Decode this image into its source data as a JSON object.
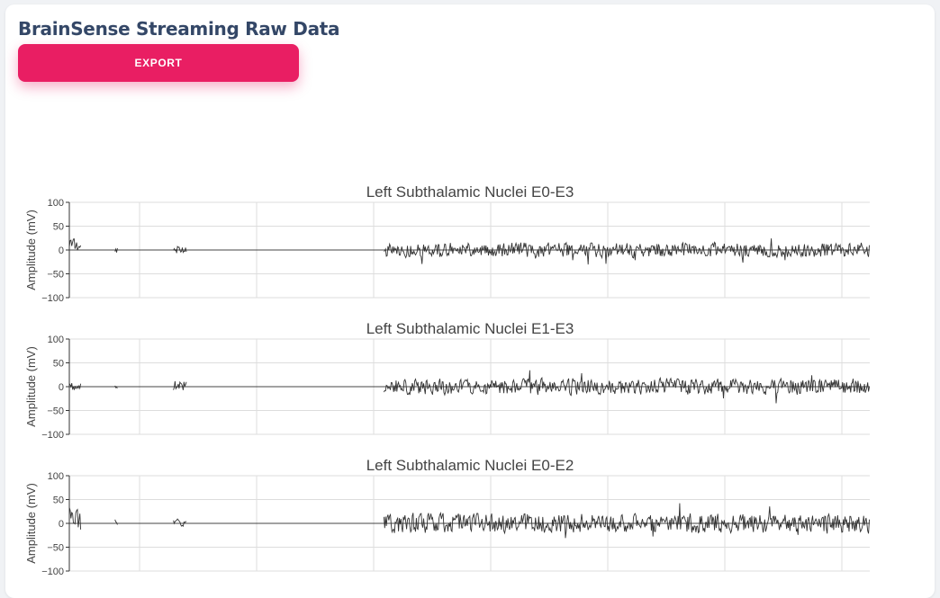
{
  "page": {
    "title": "BrainSense Streaming Raw Data",
    "export_label": "EXPORT"
  },
  "colors": {
    "accent": "#e91e63",
    "title": "#344767",
    "trace": "#333333",
    "grid": "#dddddd"
  },
  "chart_data": [
    {
      "type": "line",
      "title": "Left Subthalamic Nuclei E0-E3",
      "ylabel": "Amplitude (mV)",
      "xlabel": "",
      "ylim": [
        -100,
        100
      ],
      "yticks": [
        "100",
        "50",
        "0",
        "−50",
        "−100"
      ],
      "grid": true,
      "series": [
        {
          "segments": [
            {
              "start": 0.0,
              "end": 0.015,
              "peak": 28,
              "offset": 14,
              "seed": 11
            },
            {
              "start": 0.057,
              "end": 0.061,
              "peak": 14,
              "offset": 0,
              "seed": 12
            },
            {
              "start": 0.13,
              "end": 0.147,
              "peak": 20,
              "offset": 2,
              "seed": 13
            },
            {
              "start": 0.393,
              "end": 1.0,
              "peak": 32,
              "offset": 0,
              "seed": 14
            }
          ]
        }
      ]
    },
    {
      "type": "line",
      "title": "Left Subthalamic Nuclei E1-E3",
      "ylabel": "Amplitude (mV)",
      "xlabel": "",
      "ylim": [
        -100,
        100
      ],
      "yticks": [
        "100",
        "50",
        "0",
        "−50",
        "−100"
      ],
      "grid": true,
      "series": [
        {
          "segments": [
            {
              "start": 0.0,
              "end": 0.015,
              "peak": 18,
              "offset": 0,
              "seed": 21
            },
            {
              "start": 0.057,
              "end": 0.061,
              "peak": 14,
              "offset": -4,
              "seed": 22
            },
            {
              "start": 0.13,
              "end": 0.147,
              "peak": 22,
              "offset": 2,
              "seed": 23
            },
            {
              "start": 0.393,
              "end": 1.0,
              "peak": 35,
              "offset": 0,
              "seed": 24
            }
          ]
        }
      ]
    },
    {
      "type": "line",
      "title": "Left Subthalamic Nuclei E0-E2",
      "ylabel": "Amplitude (mV)",
      "xlabel": "",
      "ylim": [
        -100,
        100
      ],
      "yticks": [
        "100",
        "50",
        "0",
        "−50",
        "−100"
      ],
      "grid": true,
      "series": [
        {
          "segments": [
            {
              "start": 0.0,
              "end": 0.015,
              "peak": 42,
              "offset": 28,
              "seed": 31
            },
            {
              "start": 0.057,
              "end": 0.061,
              "peak": 20,
              "offset": 4,
              "seed": 32
            },
            {
              "start": 0.13,
              "end": 0.147,
              "peak": 16,
              "offset": 2,
              "seed": 33
            },
            {
              "start": 0.393,
              "end": 1.0,
              "peak": 42,
              "offset": 0,
              "seed": 34
            }
          ]
        }
      ]
    }
  ]
}
